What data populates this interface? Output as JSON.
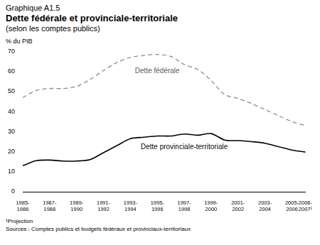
{
  "chart_data": {
    "type": "line",
    "header": "Graphique A1.5",
    "title": "Dette fédérale et provinciale-territoriale",
    "subtitle": "(selon les comptes publics)",
    "ylabel": "% du PIB",
    "notes": [
      "¹Projection",
      "Sources : Comptes publics et budgets fédéraux et provinciaux-territoriaux"
    ],
    "categories": [
      "1985-1986",
      null,
      "1987-1988",
      null,
      "1989-1990",
      null,
      "1991-1992",
      null,
      "1993-1994",
      null,
      "1995-1996",
      null,
      "1997-1998",
      null,
      "1999-2000",
      null,
      "2001-2002",
      null,
      "2003-2004",
      null,
      "2005-2006",
      "2006-2007¹"
    ],
    "series": [
      {
        "name": "Dette fédérale",
        "color": "#8c8c8c",
        "line_style": "dashed",
        "marker": "none",
        "values": [
          47,
          50.5,
          51.5,
          51.5,
          52.5,
          56,
          60.5,
          64.5,
          67,
          68,
          68.5,
          67.5,
          63.5,
          61,
          55.5,
          48.5,
          46.5,
          44,
          41,
          38,
          35,
          33
        ]
      },
      {
        "name": "Dette provinciale-territoriale",
        "color": "#000000",
        "line_style": "solid",
        "marker": "none",
        "values": [
          13,
          15.5,
          15.8,
          15.3,
          15.3,
          16,
          19.5,
          23,
          26.5,
          27.2,
          27.8,
          27.8,
          28.8,
          28.2,
          29,
          25.8,
          25.5,
          25,
          24.2,
          22.5,
          20.8,
          19.8
        ]
      }
    ],
    "ylim": [
      0,
      70
    ],
    "yticks": [
      0,
      10,
      20,
      30,
      40,
      50,
      60,
      70
    ],
    "grid": false
  }
}
